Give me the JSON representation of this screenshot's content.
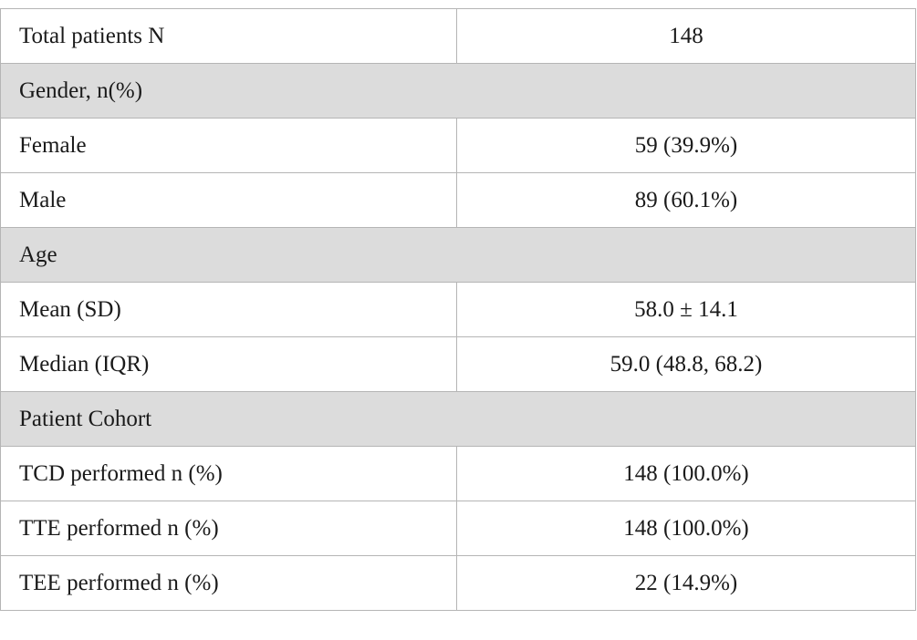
{
  "table": {
    "rows": [
      {
        "type": "data",
        "label": "Total patients N",
        "value": "148"
      },
      {
        "type": "section",
        "label": "Gender, n(%)"
      },
      {
        "type": "data",
        "label": "Female",
        "value": "59 (39.9%)"
      },
      {
        "type": "data",
        "label": "Male",
        "value": "89 (60.1%)"
      },
      {
        "type": "section",
        "label": "Age"
      },
      {
        "type": "data",
        "label": "Mean (SD)",
        "value": "58.0 ± 14.1"
      },
      {
        "type": "data",
        "label": "Median (IQR)",
        "value": "59.0 (48.8, 68.2)"
      },
      {
        "type": "section",
        "label": "Patient Cohort"
      },
      {
        "type": "data",
        "label": "TCD performed n (%)",
        "value": "148 (100.0%)"
      },
      {
        "type": "data",
        "label": "TTE performed n (%)",
        "value": "148 (100.0%)"
      },
      {
        "type": "data",
        "label": "TEE performed n (%)",
        "value": "22 (14.9%)"
      }
    ]
  }
}
